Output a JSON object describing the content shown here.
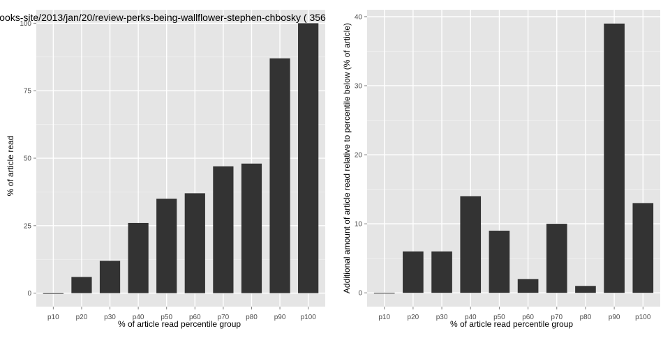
{
  "chart_data": [
    {
      "type": "bar",
      "title": "ooks-site/2013/jan/20/review-perks-being-wallflower-stephen-chbosky ( 356",
      "xlabel": "% of article read percentile group",
      "ylabel": "% of article read",
      "categories": [
        "p10",
        "p20",
        "p30",
        "p40",
        "p50",
        "p60",
        "p70",
        "p80",
        "p90",
        "p100"
      ],
      "values": [
        0,
        6,
        12,
        26,
        35,
        37,
        47,
        48,
        87,
        100
      ],
      "ylim": [
        -5,
        105
      ],
      "yticks": [
        0,
        25,
        50,
        75,
        100
      ],
      "grid": true,
      "colors": {
        "panel": "#e5e5e5",
        "grid": "#ffffff",
        "bar": "#333333",
        "tick_text": "#4d4d4d",
        "axis_text": "#000000"
      }
    },
    {
      "type": "bar",
      "title": "",
      "xlabel": "% of article read percentile group",
      "ylabel": "Additional amount of article read relative to percentile below (% of article)",
      "categories": [
        "p10",
        "p20",
        "p30",
        "p40",
        "p50",
        "p60",
        "p70",
        "p80",
        "p90",
        "p100"
      ],
      "values": [
        0,
        6,
        6,
        14,
        9,
        2,
        10,
        1,
        39,
        13
      ],
      "ylim": [
        -2,
        41
      ],
      "yticks": [
        0,
        10,
        20,
        30,
        40
      ],
      "grid": true,
      "colors": {
        "panel": "#e5e5e5",
        "grid": "#ffffff",
        "bar": "#333333",
        "tick_text": "#4d4d4d",
        "axis_text": "#000000"
      }
    }
  ]
}
